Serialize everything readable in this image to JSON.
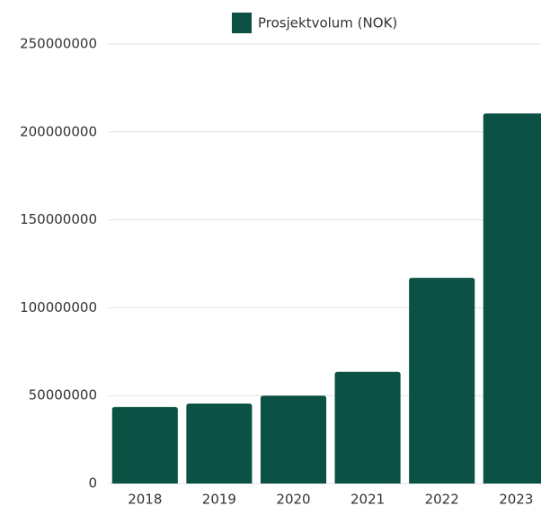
{
  "chart_data": {
    "type": "bar",
    "categories": [
      "2018",
      "2019",
      "2020",
      "2021",
      "2022",
      "2023"
    ],
    "series": [
      {
        "name": "Prosjektvolum (NOK)",
        "color": "#0b5144",
        "values": [
          43500000,
          45500000,
          50000000,
          63500000,
          117000000,
          210500000
        ]
      }
    ],
    "ylim": [
      0,
      250000000
    ],
    "yticks": [
      0,
      50000000,
      100000000,
      150000000,
      200000000,
      250000000
    ],
    "grid": true,
    "legend": "top"
  }
}
